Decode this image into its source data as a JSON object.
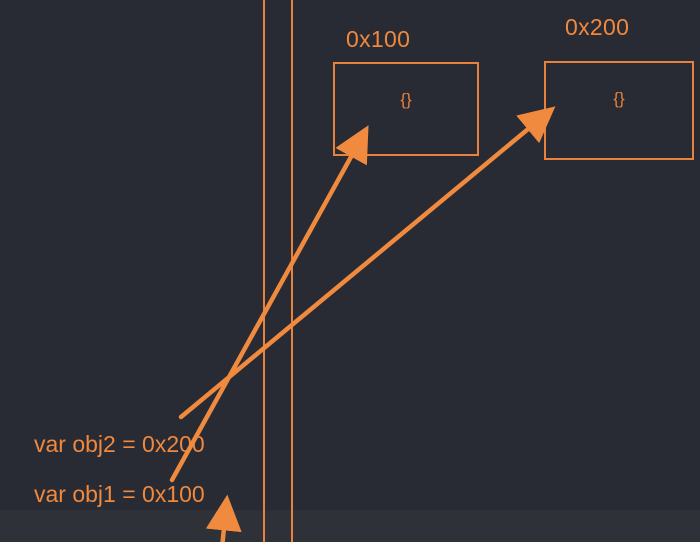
{
  "heap": {
    "objects": [
      {
        "address": "0x100",
        "content": "{}"
      },
      {
        "address": "0x200",
        "content": "{}"
      }
    ]
  },
  "stack": {
    "variables": [
      {
        "declaration": "var obj2 = 0x200"
      },
      {
        "declaration": "var obj1 = 0x100"
      }
    ]
  },
  "colors": {
    "background": "#282b33",
    "accent": "#f0883e"
  }
}
